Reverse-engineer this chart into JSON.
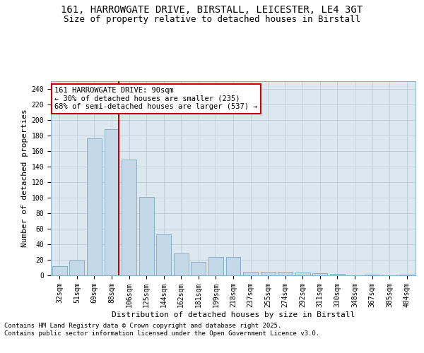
{
  "title_line1": "161, HARROWGATE DRIVE, BIRSTALL, LEICESTER, LE4 3GT",
  "title_line2": "Size of property relative to detached houses in Birstall",
  "xlabel": "Distribution of detached houses by size in Birstall",
  "ylabel": "Number of detached properties",
  "categories": [
    "32sqm",
    "51sqm",
    "69sqm",
    "88sqm",
    "106sqm",
    "125sqm",
    "144sqm",
    "162sqm",
    "181sqm",
    "199sqm",
    "218sqm",
    "237sqm",
    "255sqm",
    "274sqm",
    "292sqm",
    "311sqm",
    "330sqm",
    "348sqm",
    "367sqm",
    "385sqm",
    "404sqm"
  ],
  "values": [
    12,
    19,
    176,
    188,
    149,
    101,
    53,
    28,
    17,
    24,
    24,
    5,
    5,
    5,
    4,
    3,
    2,
    0,
    1,
    0,
    1
  ],
  "bar_color": "#c5d8e8",
  "bar_edge_color": "#7ba8c4",
  "vline_index": 3,
  "vline_color": "#cc0000",
  "annotation_text": "161 HARROWGATE DRIVE: 90sqm\n← 30% of detached houses are smaller (235)\n68% of semi-detached houses are larger (537) →",
  "annotation_box_color": "#ffffff",
  "annotation_box_edge": "#cc0000",
  "ylim": [
    0,
    250
  ],
  "yticks": [
    0,
    20,
    40,
    60,
    80,
    100,
    120,
    140,
    160,
    180,
    200,
    220,
    240
  ],
  "grid_color": "#c0ccd8",
  "background_color": "#dce8f0",
  "footer_text": "Contains HM Land Registry data © Crown copyright and database right 2025.\nContains public sector information licensed under the Open Government Licence v3.0.",
  "title_fontsize": 10,
  "subtitle_fontsize": 9,
  "axis_label_fontsize": 8,
  "tick_fontsize": 7,
  "annotation_fontsize": 7.5,
  "footer_fontsize": 6.5
}
